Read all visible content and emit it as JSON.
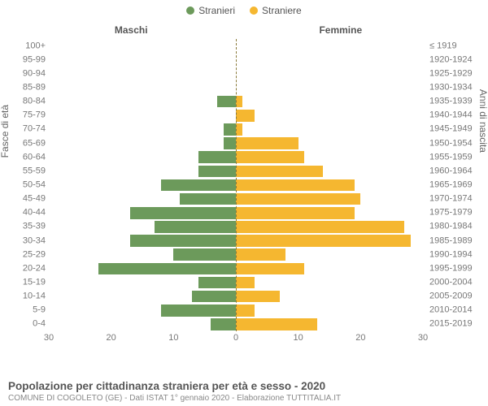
{
  "legend": {
    "male": {
      "label": "Stranieri",
      "color": "#6c9a5b"
    },
    "female": {
      "label": "Straniere",
      "color": "#f5b730"
    }
  },
  "columns": {
    "left": "Maschi",
    "right": "Femmine"
  },
  "axis": {
    "left_title": "Fasce di età",
    "right_title": "Anni di nascita",
    "x_max": 30,
    "x_ticks": [
      30,
      20,
      10,
      0,
      10,
      20,
      30
    ]
  },
  "colors": {
    "male_bar": "#6c9a5b",
    "female_bar": "#f5b730",
    "center_line": "#8a7a3a",
    "tick_text": "#777777",
    "background": "#ffffff"
  },
  "fonts": {
    "legend_size": 12,
    "axis_label_size": 11,
    "axis_title_size": 12,
    "title_size": 13.5,
    "subtitle_size": 10
  },
  "rows": [
    {
      "age": "100+",
      "birth": "≤ 1919",
      "male": 0,
      "female": 0
    },
    {
      "age": "95-99",
      "birth": "1920-1924",
      "male": 0,
      "female": 0
    },
    {
      "age": "90-94",
      "birth": "1925-1929",
      "male": 0,
      "female": 0
    },
    {
      "age": "85-89",
      "birth": "1930-1934",
      "male": 0,
      "female": 0
    },
    {
      "age": "80-84",
      "birth": "1935-1939",
      "male": 3,
      "female": 1
    },
    {
      "age": "75-79",
      "birth": "1940-1944",
      "male": 0,
      "female": 3
    },
    {
      "age": "70-74",
      "birth": "1945-1949",
      "male": 2,
      "female": 1
    },
    {
      "age": "65-69",
      "birth": "1950-1954",
      "male": 2,
      "female": 10
    },
    {
      "age": "60-64",
      "birth": "1955-1959",
      "male": 6,
      "female": 11
    },
    {
      "age": "55-59",
      "birth": "1960-1964",
      "male": 6,
      "female": 14
    },
    {
      "age": "50-54",
      "birth": "1965-1969",
      "male": 12,
      "female": 19
    },
    {
      "age": "45-49",
      "birth": "1970-1974",
      "male": 9,
      "female": 20
    },
    {
      "age": "40-44",
      "birth": "1975-1979",
      "male": 17,
      "female": 19
    },
    {
      "age": "35-39",
      "birth": "1980-1984",
      "male": 13,
      "female": 27
    },
    {
      "age": "30-34",
      "birth": "1985-1989",
      "male": 17,
      "female": 28
    },
    {
      "age": "25-29",
      "birth": "1990-1994",
      "male": 10,
      "female": 8
    },
    {
      "age": "20-24",
      "birth": "1995-1999",
      "male": 22,
      "female": 11
    },
    {
      "age": "15-19",
      "birth": "2000-2004",
      "male": 6,
      "female": 3
    },
    {
      "age": "10-14",
      "birth": "2005-2009",
      "male": 7,
      "female": 7
    },
    {
      "age": "5-9",
      "birth": "2010-2014",
      "male": 12,
      "female": 3
    },
    {
      "age": "0-4",
      "birth": "2015-2019",
      "male": 4,
      "female": 13
    }
  ],
  "footer": {
    "title": "Popolazione per cittadinanza straniera per età e sesso - 2020",
    "subtitle": "COMUNE DI COGOLETO (GE) - Dati ISTAT 1° gennaio 2020 - Elaborazione TUTTITALIA.IT"
  }
}
